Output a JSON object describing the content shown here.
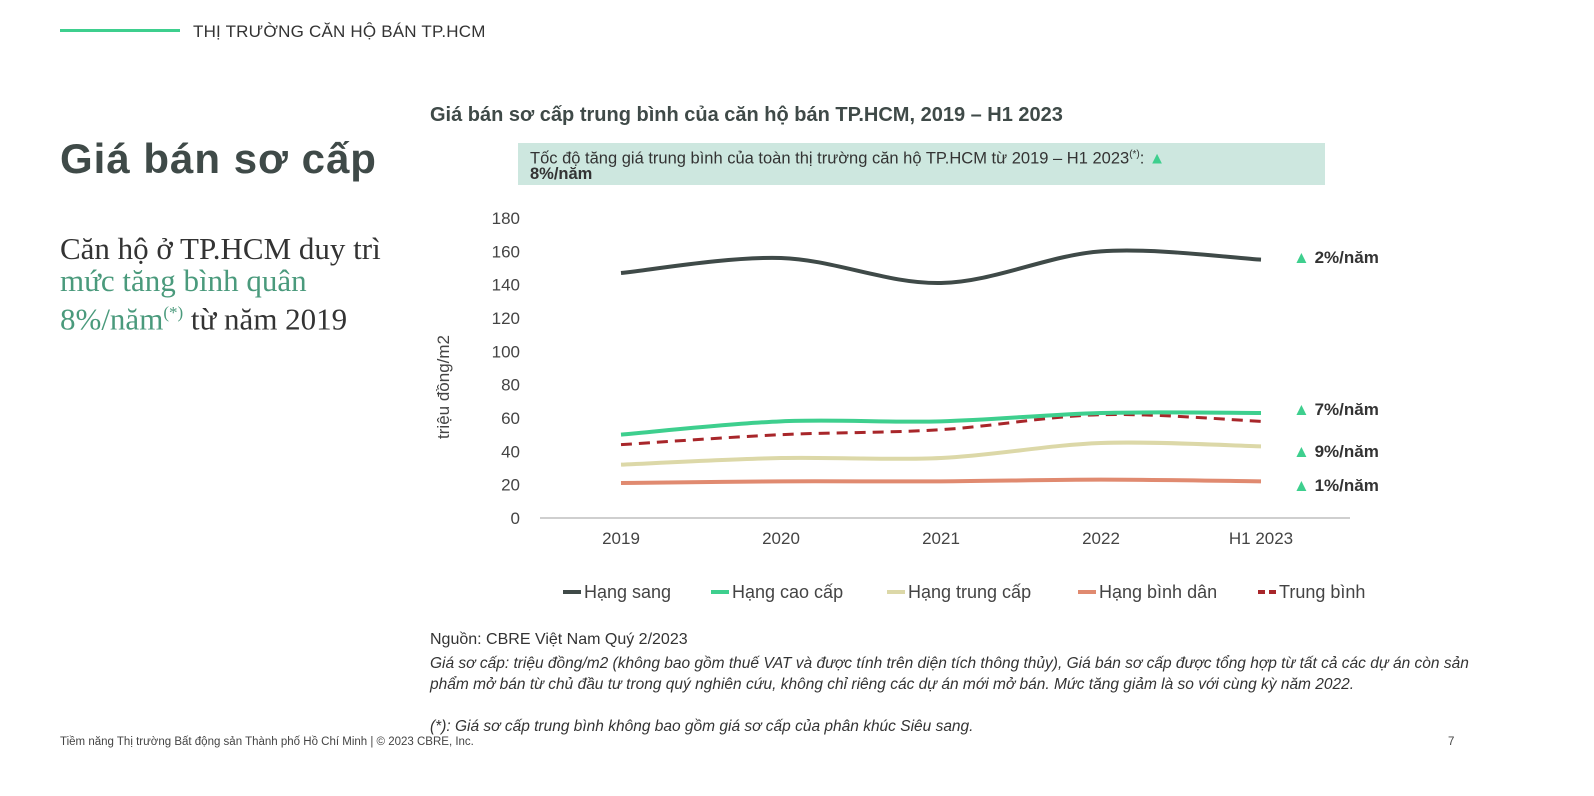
{
  "header": {
    "section_label": "THỊ TRƯỜNG CĂN HỘ BÁN TP.HCM"
  },
  "page_title": "Giá bán sơ cấp",
  "lead": {
    "line1": "Căn hộ ở TP.HCM duy trì",
    "highlight": "mức tăng bình quân 8%/năm",
    "sup": "(*)",
    "tail": " từ năm 2019"
  },
  "banner": {
    "text": "Tốc độ tăng giá trung bình của toàn thị trường căn hộ TP.HCM từ 2019 – H1 2023",
    "sup": "(*)",
    "colon": ": ",
    "arrow": "▲",
    "value": "8%/năm"
  },
  "chart_data": {
    "type": "line",
    "title": "Giá bán sơ cấp trung bình của căn hộ bán TP.HCM, 2019 – H1 2023",
    "categories": [
      "2019",
      "2020",
      "2021",
      "2022",
      "H1 2023"
    ],
    "ylabel": "triệu đồng/m2",
    "xlabel": "",
    "ylim": [
      0,
      180
    ],
    "yticks": [
      "0",
      "20",
      "40",
      "60",
      "80",
      "100",
      "120",
      "140",
      "160",
      "180"
    ],
    "grid": false,
    "legend_position": "bottom",
    "series": [
      {
        "name": "Hạng sang",
        "values": [
          147,
          156,
          141,
          160,
          155
        ],
        "color": "#3f4a48",
        "dashed": false,
        "growth": "▲ 2%/năm"
      },
      {
        "name": "Hạng cao cấp",
        "values": [
          50,
          58,
          58,
          63,
          63
        ],
        "color": "#3ecf8e",
        "dashed": false,
        "growth": "▲ 7%/năm"
      },
      {
        "name": "Hạng trung cấp",
        "values": [
          32,
          36,
          36,
          45,
          43
        ],
        "color": "#dcd8a8",
        "dashed": false,
        "growth": "▲ 9%/năm"
      },
      {
        "name": "Hạng bình dân",
        "values": [
          21,
          22,
          22,
          23,
          22
        ],
        "color": "#e08a70",
        "dashed": false,
        "growth": "▲ 1%/năm"
      },
      {
        "name": "Trung bình",
        "values": [
          44,
          50,
          53,
          62,
          58
        ],
        "color": "#a8262a",
        "dashed": true,
        "growth": ""
      }
    ]
  },
  "source": "Nguồn: CBRE Việt Nam Quý 2/2023",
  "note": "Giá sơ cấp: triệu đồng/m2 (không bao gồm thuế VAT và được tính trên diện tích thông thủy), Giá bán sơ cấp được tổng hợp từ tất cả các dự án còn sản phẩm mở bán từ chủ đầu tư trong quý nghiên cứu, không chỉ riêng các dự án mới mở bán. Mức tăng giảm là so với cùng kỳ năm 2022.",
  "note2": "(*): Giá sơ cấp trung bình không bao gồm giá sơ cấp của phân khúc Siêu sang.",
  "footer": "Tiềm năng Thị trường Bất động sản Thành phố Hồ Chí Minh | © 2023 CBRE, Inc.",
  "page_number": "7"
}
